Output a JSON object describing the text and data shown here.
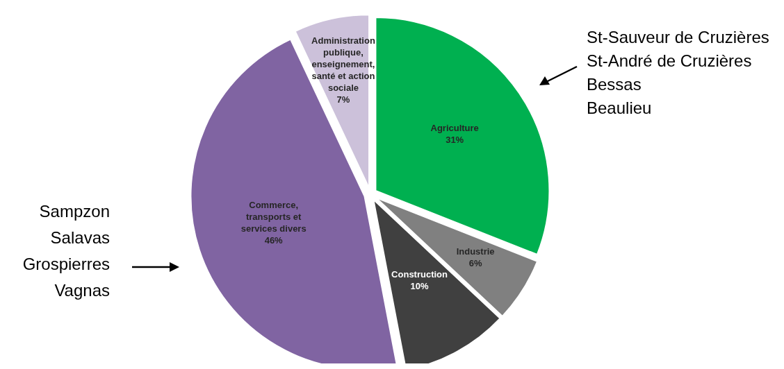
{
  "chart_data": {
    "type": "pie",
    "categories": [
      "Agriculture",
      "Industrie",
      "Construction",
      "Commerce, transports et services divers",
      "Administration publique, enseignement, santé et action sociale"
    ],
    "values": [
      31,
      6,
      10,
      46,
      7
    ],
    "value_labels": [
      "31%",
      "6%",
      "10%",
      "46%",
      "7%"
    ],
    "colors": [
      "#00b050",
      "#808080",
      "#404040",
      "#8064a2",
      "#ccc1da"
    ],
    "annotations": [
      "St-Sauveur de Cruzières",
      "St-André de Cruzières",
      "Bessas",
      "Beaulieu",
      "Sampzon",
      "Salavas",
      "Grospierres",
      "Vagnas"
    ]
  }
}
